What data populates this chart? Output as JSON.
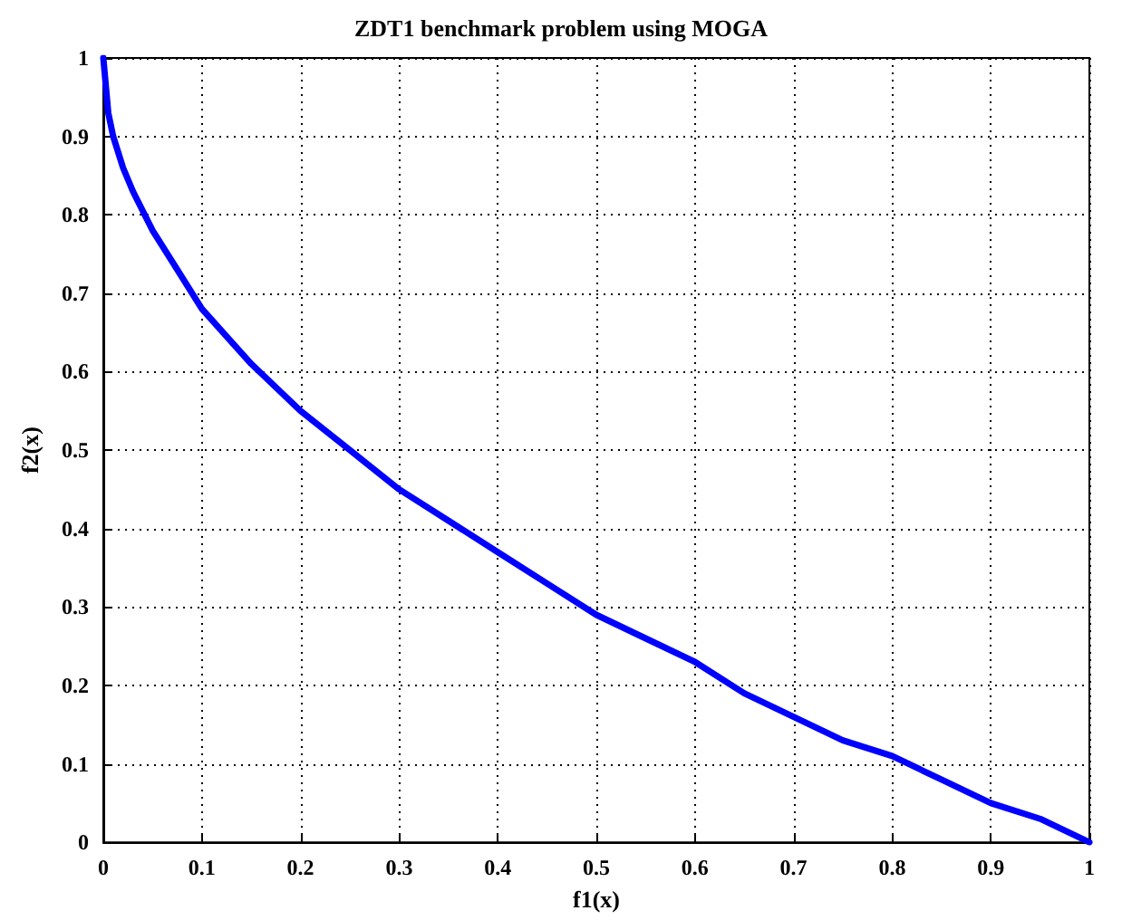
{
  "chart_data": {
    "type": "line",
    "title": "ZDT1 benchmark problem using MOGA",
    "xlabel": "f1(x)",
    "ylabel": "f2(x)",
    "x": [
      0,
      0.005,
      0.01,
      0.02,
      0.03,
      0.05,
      0.07,
      0.1,
      0.15,
      0.2,
      0.25,
      0.3,
      0.35,
      0.4,
      0.45,
      0.5,
      0.55,
      0.6,
      0.65,
      0.7,
      0.75,
      0.8,
      0.85,
      0.9,
      0.95,
      1
    ],
    "series": [
      {
        "color": "#0000ff",
        "values": [
          1,
          0.93,
          0.9,
          0.86,
          0.83,
          0.78,
          0.74,
          0.68,
          0.61,
          0.55,
          0.5,
          0.45,
          0.41,
          0.37,
          0.33,
          0.29,
          0.26,
          0.23,
          0.19,
          0.16,
          0.13,
          0.11,
          0.08,
          0.05,
          0.03,
          0
        ]
      }
    ],
    "xlim": [
      0,
      1
    ],
    "ylim": [
      0,
      1
    ],
    "xticks": [
      0,
      0.1,
      0.2,
      0.3,
      0.4,
      0.5,
      0.6,
      0.7,
      0.8,
      0.9,
      1
    ],
    "yticks": [
      0,
      0.1,
      0.2,
      0.3,
      0.4,
      0.5,
      0.6,
      0.7,
      0.8,
      0.9,
      1
    ],
    "grid": true,
    "marker": "none",
    "line_style": "solid"
  }
}
